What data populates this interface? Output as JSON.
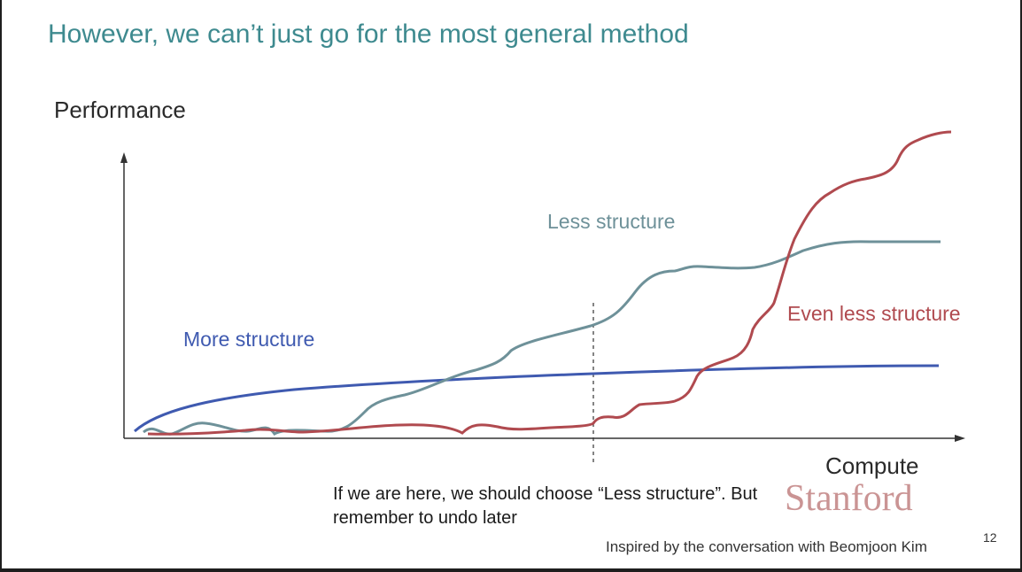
{
  "slide": {
    "title": "However, we can’t just go for the most general method",
    "y_axis_label": "Performance",
    "x_axis_label": "Compute",
    "series_labels": {
      "more": "More structure",
      "less": "Less structure",
      "even_less": "Even less structure"
    },
    "note": "If we are here, we should choose “Less structure”. But remember to undo later",
    "logo": "Stanford",
    "footer": "Inspired by the conversation with Beomjoon Kim",
    "page_number": "12"
  },
  "colors": {
    "title": "#3e8a8f",
    "more_structure": "#3f5ab0",
    "less_structure": "#6e9199",
    "even_less_structure": "#b04a4f"
  }
}
